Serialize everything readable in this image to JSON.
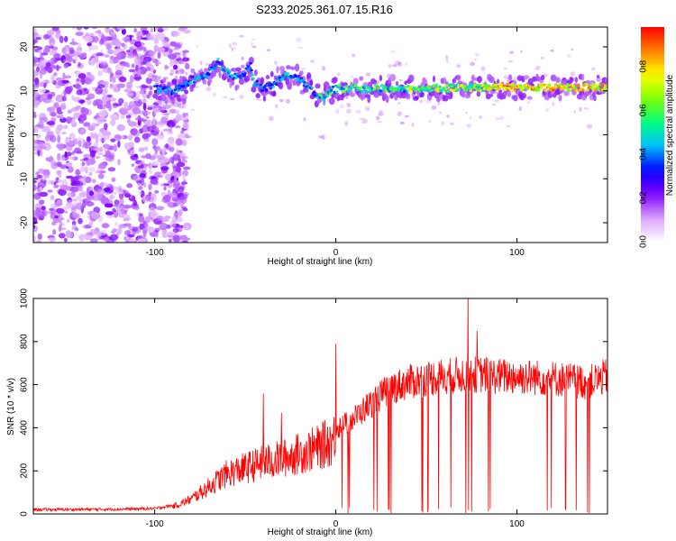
{
  "figure_title": "S233.2025.361.07.15.R16",
  "chart_data": [
    {
      "type": "heatmap",
      "xlabel": "Height of straight line (km)",
      "ylabel": "Frequency (Hz)",
      "xlim": [
        -167,
        150
      ],
      "ylim": [
        -24.5,
        24.5
      ],
      "x_ticks": [
        -100,
        0,
        100
      ],
      "y_ticks": [
        -20,
        -10,
        0,
        10,
        20
      ],
      "colorbar": {
        "label": "Normalized spectral amplitude",
        "range": [
          0,
          0.98
        ],
        "ticks": [
          0,
          0.2,
          0.4,
          0.6,
          0.8
        ],
        "tick_labels": [
          "0.0",
          "0.2",
          "0.4",
          "0.6",
          "0.8"
        ],
        "colormap": [
          "#ffffff",
          "#d9a0ff",
          "#8000ff",
          "#0000ff",
          "#00bfff",
          "#00ff80",
          "#80ff00",
          "#ffff00",
          "#ff8000",
          "#ff0000"
        ]
      },
      "ridge": [
        [
          -100,
          10.5
        ],
        [
          -90,
          10
        ],
        [
          -85,
          11
        ],
        [
          -80,
          12.5
        ],
        [
          -75,
          13
        ],
        [
          -70,
          14
        ],
        [
          -65,
          16.5
        ],
        [
          -60,
          14
        ],
        [
          -55,
          13
        ],
        [
          -50,
          14
        ],
        [
          -47,
          16
        ],
        [
          -45,
          12
        ],
        [
          -40,
          10.5
        ],
        [
          -35,
          11.5
        ],
        [
          -30,
          13
        ],
        [
          -25,
          13.5
        ],
        [
          -20,
          12.5
        ],
        [
          -15,
          11
        ],
        [
          -10,
          9
        ],
        [
          -7,
          8
        ],
        [
          -5,
          9.5
        ],
        [
          0,
          10.5
        ],
        [
          20,
          10.5
        ],
        [
          50,
          10.5
        ],
        [
          80,
          10.8
        ],
        [
          100,
          10.8
        ],
        [
          150,
          10.8
        ]
      ]
    },
    {
      "type": "line",
      "color": "#ff0000",
      "xlabel": "Height of straight line (km)",
      "ylabel": "SNR (10 * v/v)",
      "xlim": [
        -167,
        150
      ],
      "ylim": [
        0,
        1000
      ],
      "x_ticks": [
        -100,
        0,
        100
      ],
      "y_ticks": [
        0,
        200,
        400,
        600,
        800,
        1000
      ],
      "envelope": [
        [
          -167,
          20
        ],
        [
          -120,
          22
        ],
        [
          -100,
          25
        ],
        [
          -90,
          40
        ],
        [
          -80,
          80
        ],
        [
          -70,
          150
        ],
        [
          -60,
          220
        ],
        [
          -50,
          250
        ],
        [
          -40,
          280
        ],
        [
          -30,
          300
        ],
        [
          -20,
          330
        ],
        [
          -10,
          360
        ],
        [
          -2,
          400
        ],
        [
          0,
          430
        ],
        [
          5,
          450
        ],
        [
          10,
          480
        ],
        [
          20,
          560
        ],
        [
          30,
          630
        ],
        [
          40,
          660
        ],
        [
          50,
          680
        ],
        [
          60,
          690
        ],
        [
          70,
          700
        ],
        [
          80,
          700
        ],
        [
          90,
          690
        ],
        [
          100,
          690
        ],
        [
          120,
          680
        ],
        [
          140,
          660
        ],
        [
          150,
          690
        ]
      ],
      "peaks": [
        [
          -40,
          560
        ],
        [
          -30,
          470
        ],
        [
          0,
          790
        ],
        [
          73,
          1000
        ],
        [
          78,
          850
        ]
      ]
    }
  ]
}
